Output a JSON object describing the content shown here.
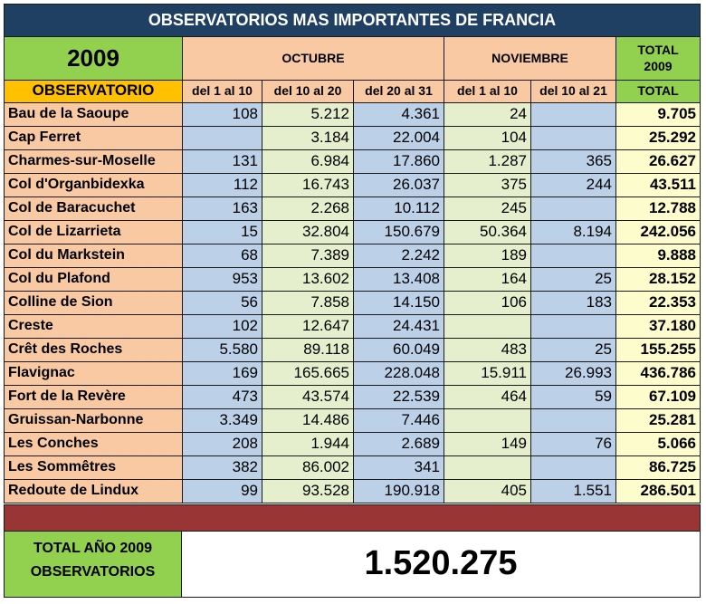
{
  "title": "OBSERVATORIOS MAS IMPORTANTES DE FRANCIA",
  "header": {
    "year": "2009",
    "months": [
      "OCTUBRE",
      "NOVIEMBRE"
    ],
    "total_label_line1": "TOTAL",
    "total_label_line2": "2009",
    "observatorio_label": "OBSERVATORIO",
    "periods": [
      "del 1 al 10",
      "del 10 al 20",
      "del 20 al 31",
      "del 1 al 10",
      "del 10 al 21"
    ],
    "total_label": "TOTAL"
  },
  "rows": [
    {
      "name": "Bau de la Saoupe",
      "values": [
        "108",
        "5.212",
        "4.361",
        "24",
        ""
      ],
      "total": "9.705"
    },
    {
      "name": "Cap Ferret",
      "values": [
        "",
        "3.184",
        "22.004",
        "104",
        ""
      ],
      "total": "25.292"
    },
    {
      "name": "Charmes-sur-Moselle",
      "values": [
        "131",
        "6.984",
        "17.860",
        "1.287",
        "365"
      ],
      "total": "26.627"
    },
    {
      "name": "Col d'Organbidexka",
      "values": [
        "112",
        "16.743",
        "26.037",
        "375",
        "244"
      ],
      "total": "43.511"
    },
    {
      "name": "Col de Baracuchet",
      "values": [
        "163",
        "2.268",
        "10.112",
        "245",
        ""
      ],
      "total": "12.788"
    },
    {
      "name": "Col de Lizarrieta",
      "values": [
        "15",
        "32.804",
        "150.679",
        "50.364",
        "8.194"
      ],
      "total": "242.056"
    },
    {
      "name": "Col du Markstein",
      "values": [
        "68",
        "7.389",
        "2.242",
        "189",
        ""
      ],
      "total": "9.888"
    },
    {
      "name": "Col du Plafond",
      "values": [
        "953",
        "13.602",
        "13.408",
        "164",
        "25"
      ],
      "total": "28.152"
    },
    {
      "name": "Colline de Sion",
      "values": [
        "56",
        "7.858",
        "14.150",
        "106",
        "183"
      ],
      "total": "22.353"
    },
    {
      "name": "Creste",
      "values": [
        "102",
        "12.647",
        "24.431",
        "",
        ""
      ],
      "total": "37.180"
    },
    {
      "name": "Crêt des Roches",
      "values": [
        "5.580",
        "89.118",
        "60.049",
        "483",
        "25"
      ],
      "total": "155.255"
    },
    {
      "name": "Flavignac",
      "values": [
        "169",
        "165.665",
        "228.048",
        "15.911",
        "26.993"
      ],
      "total": "436.786"
    },
    {
      "name": "Fort de la Revère",
      "values": [
        "473",
        "43.574",
        "22.539",
        "464",
        "59"
      ],
      "total": "67.109"
    },
    {
      "name": "Gruissan-Narbonne",
      "values": [
        "3.349",
        "14.486",
        "7.446",
        "",
        ""
      ],
      "total": "25.281"
    },
    {
      "name": "Les Conches",
      "values": [
        "208",
        "1.944",
        "2.689",
        "149",
        "76"
      ],
      "total": "5.066"
    },
    {
      "name": "Les Sommêtres",
      "values": [
        "382",
        "86.002",
        "341",
        "",
        ""
      ],
      "total": "86.725"
    },
    {
      "name": "Redoute de Lindux",
      "values": [
        "99",
        "93.528",
        "190.918",
        "405",
        "1.551"
      ],
      "total": "286.501"
    }
  ],
  "footer": {
    "label_line1": "TOTAL AÑO 2009",
    "label_line2": "OBSERVATORIOS",
    "value": "1.520.275"
  }
}
